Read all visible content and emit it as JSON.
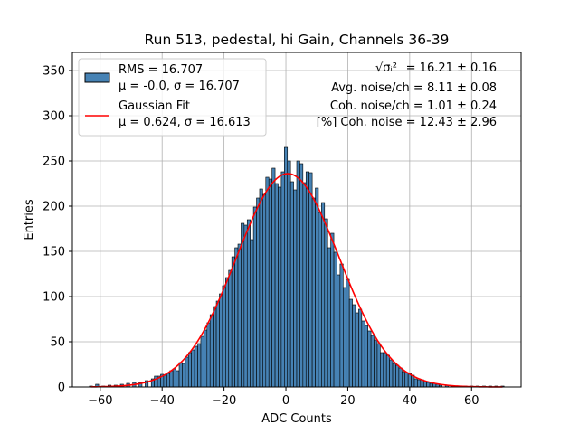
{
  "chart_data": {
    "type": "bar",
    "title": "Run 513, pedestal, hi Gain, Channels 36-39",
    "xlabel": "ADC Counts",
    "ylabel": "Entries",
    "xlim": [
      -69,
      76
    ],
    "ylim": [
      0,
      370
    ],
    "xticks": [
      -60,
      -40,
      -20,
      0,
      20,
      40,
      60
    ],
    "yticks": [
      0,
      50,
      100,
      150,
      200,
      250,
      300,
      350
    ],
    "grid": true,
    "legend_position": "top-left",
    "colors": {
      "bars": "#4682b4",
      "bar_edge": "#000000",
      "fit_line": "#ff0000"
    },
    "histogram": {
      "name": "RMS = 16.707",
      "stats_line": "μ = -0.0, σ = 16.707",
      "bin_width": 1,
      "bins": [
        [
          -63,
          1
        ],
        [
          -61,
          3
        ],
        [
          -59,
          1
        ],
        [
          -57,
          2
        ],
        [
          -55,
          2
        ],
        [
          -53,
          3
        ],
        [
          -51,
          4
        ],
        [
          -49,
          5
        ],
        [
          -47,
          5
        ],
        [
          -45,
          7
        ],
        [
          -43,
          9
        ],
        [
          -42,
          12
        ],
        [
          -41,
          12
        ],
        [
          -40,
          14
        ],
        [
          -39,
          13
        ],
        [
          -38,
          15
        ],
        [
          -37,
          18
        ],
        [
          -36,
          20
        ],
        [
          -35,
          18
        ],
        [
          -34,
          27
        ],
        [
          -33,
          26
        ],
        [
          -32,
          33
        ],
        [
          -31,
          38
        ],
        [
          -30,
          41
        ],
        [
          -29,
          45
        ],
        [
          -28,
          48
        ],
        [
          -27,
          56
        ],
        [
          -26,
          63
        ],
        [
          -25,
          71
        ],
        [
          -24,
          80
        ],
        [
          -23,
          89
        ],
        [
          -22,
          95
        ],
        [
          -21,
          103
        ],
        [
          -20,
          112
        ],
        [
          -19,
          121
        ],
        [
          -18,
          129
        ],
        [
          -17,
          144
        ],
        [
          -16,
          154
        ],
        [
          -15,
          158
        ],
        [
          -14,
          181
        ],
        [
          -13,
          179
        ],
        [
          -12,
          185
        ],
        [
          -11,
          163
        ],
        [
          -10,
          199
        ],
        [
          -9,
          209
        ],
        [
          -8,
          219
        ],
        [
          -7,
          213
        ],
        [
          -6,
          232
        ],
        [
          -5,
          230
        ],
        [
          -4,
          242
        ],
        [
          -3,
          225
        ],
        [
          -2,
          221
        ],
        [
          -1,
          238
        ],
        [
          0,
          265
        ],
        [
          1,
          250
        ],
        [
          2,
          227
        ],
        [
          3,
          218
        ],
        [
          4,
          250
        ],
        [
          5,
          247
        ],
        [
          6,
          226
        ],
        [
          7,
          238
        ],
        [
          8,
          237
        ],
        [
          9,
          209
        ],
        [
          10,
          220
        ],
        [
          11,
          193
        ],
        [
          12,
          204
        ],
        [
          13,
          186
        ],
        [
          14,
          154
        ],
        [
          15,
          170
        ],
        [
          16,
          149
        ],
        [
          17,
          124
        ],
        [
          18,
          136
        ],
        [
          19,
          110
        ],
        [
          20,
          119
        ],
        [
          21,
          97
        ],
        [
          22,
          91
        ],
        [
          23,
          82
        ],
        [
          24,
          86
        ],
        [
          25,
          73
        ],
        [
          26,
          68
        ],
        [
          27,
          62
        ],
        [
          28,
          57
        ],
        [
          29,
          52
        ],
        [
          30,
          48
        ],
        [
          31,
          38
        ],
        [
          32,
          38
        ],
        [
          33,
          35
        ],
        [
          34,
          30
        ],
        [
          35,
          26
        ],
        [
          36,
          24
        ],
        [
          37,
          21
        ],
        [
          38,
          17
        ],
        [
          39,
          16
        ],
        [
          40,
          15
        ],
        [
          41,
          13
        ],
        [
          42,
          9
        ],
        [
          43,
          8
        ],
        [
          44,
          8
        ],
        [
          45,
          6
        ],
        [
          46,
          5
        ],
        [
          47,
          4
        ],
        [
          48,
          4
        ],
        [
          49,
          3
        ],
        [
          50,
          2
        ],
        [
          52,
          2
        ],
        [
          54,
          1
        ],
        [
          56,
          1
        ],
        [
          58,
          1
        ],
        [
          60,
          1
        ],
        [
          62,
          1
        ],
        [
          64,
          1
        ],
        [
          66,
          1
        ],
        [
          68,
          1
        ],
        [
          70,
          1
        ]
      ]
    },
    "fit": {
      "name": "Gaussian Fit",
      "stats_line": "μ = 0.624, σ = 16.613",
      "mu": 0.624,
      "sigma": 16.613,
      "amplitude": 236,
      "x_range": [
        -63,
        70
      ]
    },
    "stats_box": [
      "= 16.21 ± 0.16",
      "Avg. noise/ch = 8.11 ± 0.08",
      "Coh. noise/ch = 1.01 ± 0.24",
      "[%] Coh. noise = 12.43 ± 2.96"
    ],
    "stats_formula_label": "√σᵢ²"
  }
}
